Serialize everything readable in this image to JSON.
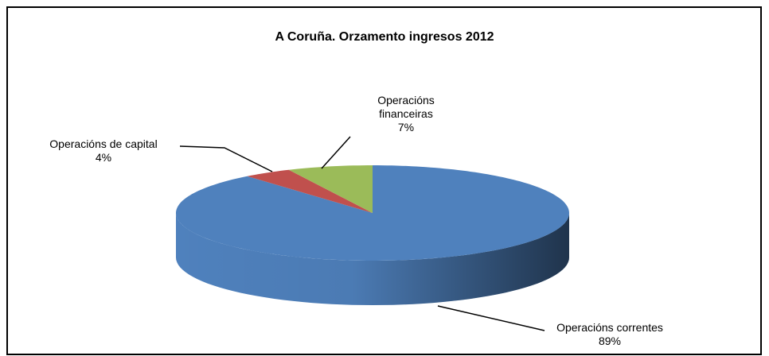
{
  "chart_data": {
    "type": "pie3d",
    "title": "A Coruña. Orzamento ingresos 2012",
    "categories": [
      "Operacións correntes",
      "Operacións de capital",
      "Operacións financeiras"
    ],
    "values": [
      89,
      4,
      7
    ],
    "value_labels": [
      "89%",
      "4%",
      "7%"
    ],
    "colors": [
      "#4f81bd",
      "#c0504d",
      "#9bbb59"
    ]
  }
}
